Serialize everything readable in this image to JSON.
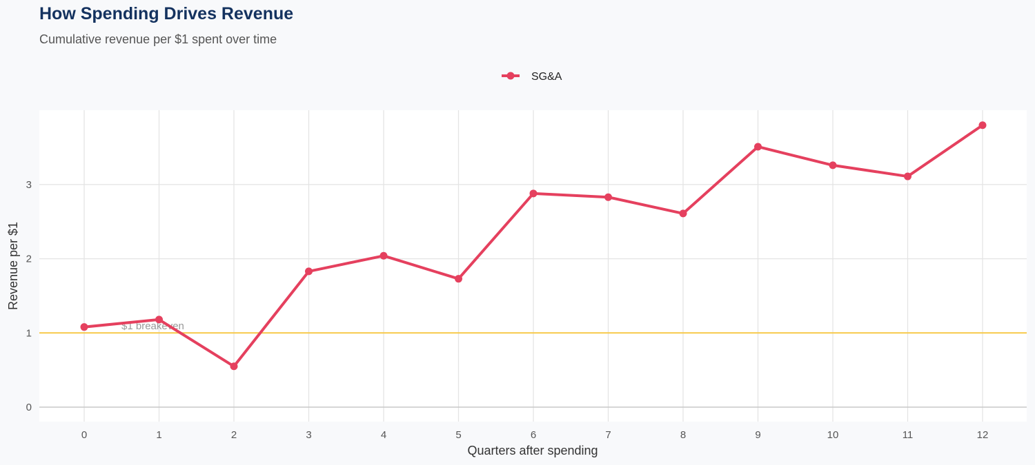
{
  "header": {
    "title": "How Spending Drives Revenue",
    "subtitle": "Cumulative revenue per $1 spent over time"
  },
  "chart_data": {
    "type": "line",
    "title": "How Spending Drives Revenue",
    "subtitle": "Cumulative revenue per $1 spent over time",
    "xlabel": "Quarters after spending",
    "ylabel": "Revenue per $1",
    "x": [
      0,
      1,
      2,
      3,
      4,
      5,
      6,
      7,
      8,
      9,
      10,
      11,
      12
    ],
    "xticks": [
      "0",
      "1",
      "2",
      "3",
      "4",
      "5",
      "6",
      "7",
      "8",
      "9",
      "10",
      "11",
      "12"
    ],
    "yticks": [
      "0",
      "1",
      "2",
      "3"
    ],
    "xlim": [
      -0.6,
      12.6
    ],
    "ylim": [
      -0.2,
      4.0
    ],
    "grid": true,
    "legend_position": "top",
    "series": [
      {
        "name": "SG&A",
        "color": "#e5405e",
        "values": [
          1.08,
          1.18,
          0.55,
          1.83,
          2.04,
          1.73,
          2.88,
          2.83,
          2.61,
          3.51,
          3.26,
          3.11,
          3.8
        ]
      }
    ],
    "reference_line": {
      "y": 1,
      "label": "$1 breakeven",
      "color": "#f7c948"
    }
  }
}
